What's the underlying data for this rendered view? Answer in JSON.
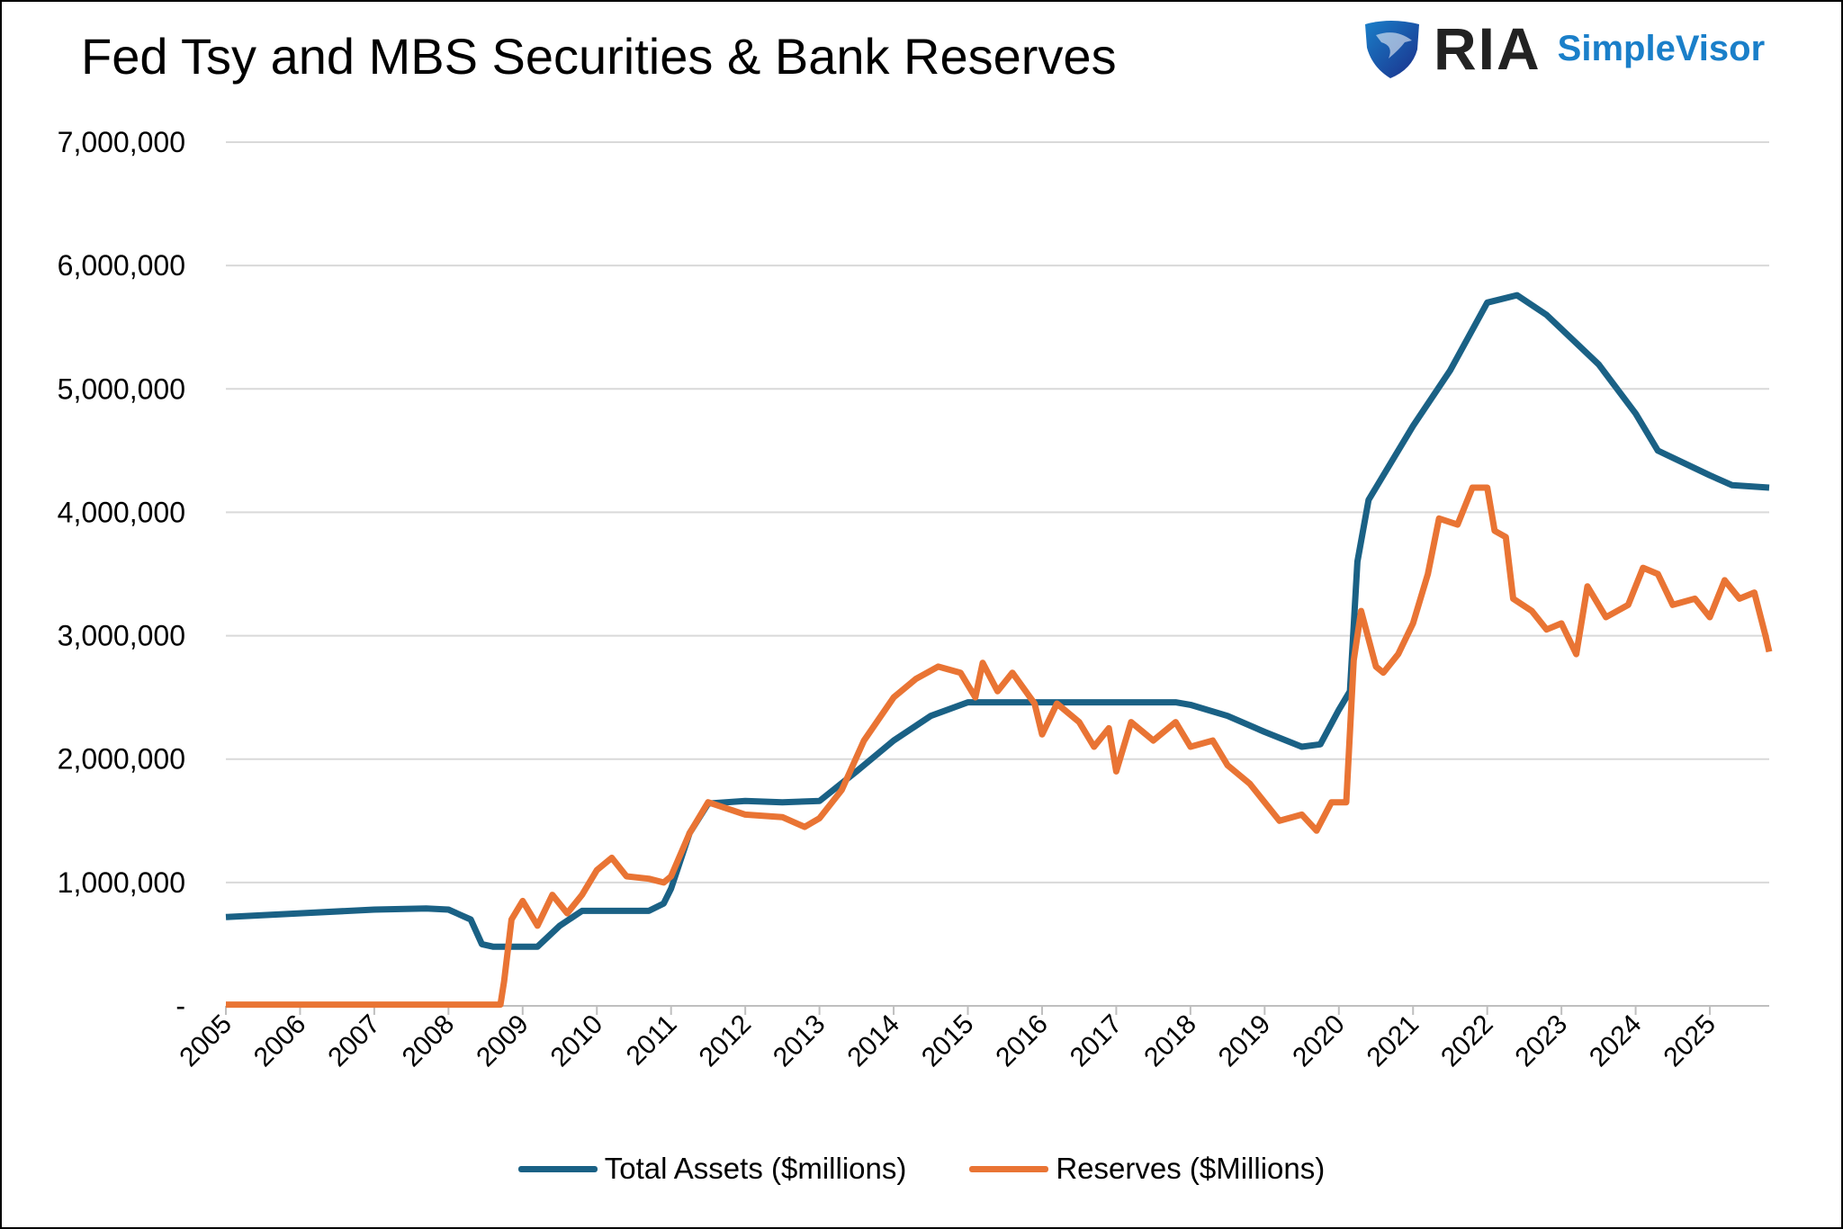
{
  "chart_data": {
    "type": "line",
    "title": "Fed Tsy and MBS Securities & Bank Reserves",
    "xlabel": "",
    "ylabel": "",
    "xlim": [
      2005,
      2025.8
    ],
    "ylim": [
      0,
      7000000
    ],
    "grid": true,
    "legend_placement": "bottom",
    "y_ticks": [
      "-",
      "1,000,000",
      "2,000,000",
      "3,000,000",
      "4,000,000",
      "5,000,000",
      "6,000,000",
      "7,000,000"
    ],
    "x_ticks": [
      "2005",
      "2006",
      "2007",
      "2008",
      "2009",
      "2010",
      "2011",
      "2012",
      "2013",
      "2014",
      "2015",
      "2016",
      "2017",
      "2018",
      "2019",
      "2020",
      "2021",
      "2022",
      "2023",
      "2024",
      "2025"
    ],
    "series": [
      {
        "name": "Total Assets ($millions)",
        "color": "#1a6185",
        "x": [
          2005,
          2006,
          2007,
          2007.7,
          2008.0,
          2008.3,
          2008.45,
          2008.6,
          2009.0,
          2009.2,
          2009.5,
          2009.8,
          2010.0,
          2010.7,
          2010.9,
          2011.0,
          2011.25,
          2011.5,
          2012.0,
          2012.5,
          2013.0,
          2013.5,
          2014.0,
          2014.5,
          2015.0,
          2015.5,
          2016.0,
          2017.0,
          2017.8,
          2018.0,
          2018.5,
          2019.0,
          2019.5,
          2019.75,
          2020.0,
          2020.15,
          2020.25,
          2020.4,
          2021.0,
          2021.5,
          2022.0,
          2022.4,
          2022.8,
          2023.5,
          2024.0,
          2024.3,
          2025.0,
          2025.3,
          2025.8
        ],
        "values": [
          720000,
          750000,
          780000,
          790000,
          780000,
          700000,
          500000,
          480000,
          480000,
          480000,
          650000,
          770000,
          770000,
          770000,
          830000,
          950000,
          1400000,
          1640000,
          1660000,
          1650000,
          1660000,
          1900000,
          2150000,
          2350000,
          2460000,
          2460000,
          2460000,
          2460000,
          2460000,
          2440000,
          2350000,
          2220000,
          2100000,
          2120000,
          2400000,
          2550000,
          3600000,
          4100000,
          4700000,
          5150000,
          5700000,
          5760000,
          5600000,
          5200000,
          4800000,
          4500000,
          4300000,
          4220000,
          4200000
        ]
      },
      {
        "name": "Reserves ($Millions)",
        "color": "#e97434",
        "x": [
          2005,
          2008.7,
          2008.75,
          2008.85,
          2009.0,
          2009.2,
          2009.4,
          2009.6,
          2009.8,
          2010.0,
          2010.2,
          2010.4,
          2010.7,
          2010.9,
          2011.0,
          2011.25,
          2011.5,
          2011.75,
          2012.0,
          2012.5,
          2012.8,
          2013.0,
          2013.3,
          2013.6,
          2014.0,
          2014.3,
          2014.6,
          2014.9,
          2015.1,
          2015.2,
          2015.4,
          2015.6,
          2015.9,
          2016.0,
          2016.2,
          2016.5,
          2016.7,
          2016.9,
          2017.0,
          2017.2,
          2017.5,
          2017.8,
          2018.0,
          2018.3,
          2018.5,
          2018.8,
          2019.0,
          2019.2,
          2019.5,
          2019.7,
          2019.9,
          2020.1,
          2020.2,
          2020.3,
          2020.5,
          2020.6,
          2020.8,
          2021.0,
          2021.2,
          2021.35,
          2021.6,
          2021.8,
          2022.0,
          2022.1,
          2022.25,
          2022.35,
          2022.6,
          2022.8,
          2023.0,
          2023.2,
          2023.35,
          2023.6,
          2023.9,
          2024.1,
          2024.3,
          2024.5,
          2024.8,
          2025.0,
          2025.2,
          2025.4,
          2025.6,
          2025.75,
          2025.8
        ],
        "values": [
          10000,
          10000,
          200000,
          700000,
          850000,
          650000,
          900000,
          750000,
          900000,
          1100000,
          1200000,
          1050000,
          1030000,
          1000000,
          1050000,
          1400000,
          1650000,
          1600000,
          1550000,
          1530000,
          1450000,
          1520000,
          1750000,
          2150000,
          2500000,
          2650000,
          2750000,
          2700000,
          2500000,
          2780000,
          2550000,
          2700000,
          2450000,
          2200000,
          2450000,
          2300000,
          2100000,
          2250000,
          1900000,
          2300000,
          2150000,
          2300000,
          2100000,
          2150000,
          1950000,
          1800000,
          1650000,
          1500000,
          1550000,
          1420000,
          1650000,
          1650000,
          2800000,
          3200000,
          2750000,
          2700000,
          2850000,
          3100000,
          3500000,
          3950000,
          3900000,
          4200000,
          4200000,
          3850000,
          3800000,
          3300000,
          3200000,
          3050000,
          3100000,
          2850000,
          3400000,
          3150000,
          3250000,
          3550000,
          3500000,
          3250000,
          3300000,
          3150000,
          3450000,
          3300000,
          3350000,
          3000000,
          2870000
        ]
      }
    ]
  },
  "logo": {
    "brand": "RIA",
    "product": "SimpleVisor"
  }
}
